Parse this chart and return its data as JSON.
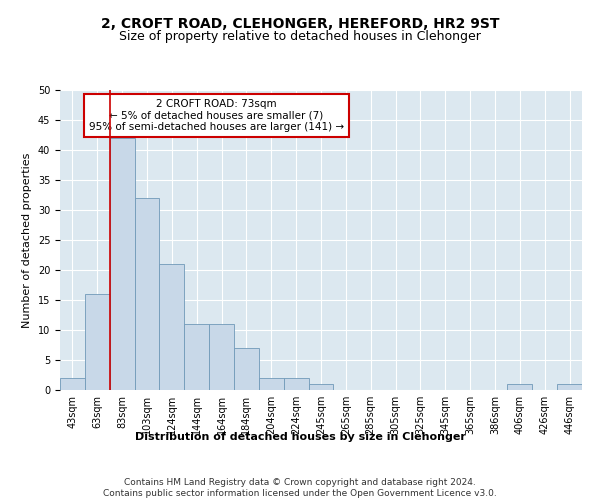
{
  "title": "2, CROFT ROAD, CLEHONGER, HEREFORD, HR2 9ST",
  "subtitle": "Size of property relative to detached houses in Clehonger",
  "xlabel_bottom": "Distribution of detached houses by size in Clehonger",
  "ylabel": "Number of detached properties",
  "bar_labels": [
    "43sqm",
    "63sqm",
    "83sqm",
    "103sqm",
    "124sqm",
    "144sqm",
    "164sqm",
    "184sqm",
    "204sqm",
    "224sqm",
    "245sqm",
    "265sqm",
    "285sqm",
    "305sqm",
    "325sqm",
    "345sqm",
    "365sqm",
    "386sqm",
    "406sqm",
    "426sqm",
    "446sqm"
  ],
  "bar_values": [
    2,
    16,
    42,
    32,
    21,
    11,
    11,
    7,
    2,
    2,
    1,
    0,
    0,
    0,
    0,
    0,
    0,
    0,
    1,
    0,
    1
  ],
  "bar_color": "#c8d8e8",
  "bar_edge_color": "#7099b8",
  "vline_x": 1.5,
  "vline_color": "#cc0000",
  "annotation_text": "2 CROFT ROAD: 73sqm\n← 5% of detached houses are smaller (7)\n95% of semi-detached houses are larger (141) →",
  "annotation_box_color": "#ffffff",
  "annotation_box_edge": "#cc0000",
  "ylim": [
    0,
    50
  ],
  "yticks": [
    0,
    5,
    10,
    15,
    20,
    25,
    30,
    35,
    40,
    45,
    50
  ],
  "plot_bg_color": "#dce8f0",
  "footer": "Contains HM Land Registry data © Crown copyright and database right 2024.\nContains public sector information licensed under the Open Government Licence v3.0.",
  "title_fontsize": 10,
  "subtitle_fontsize": 9,
  "axis_label_fontsize": 8,
  "tick_fontsize": 7,
  "footer_fontsize": 6.5
}
